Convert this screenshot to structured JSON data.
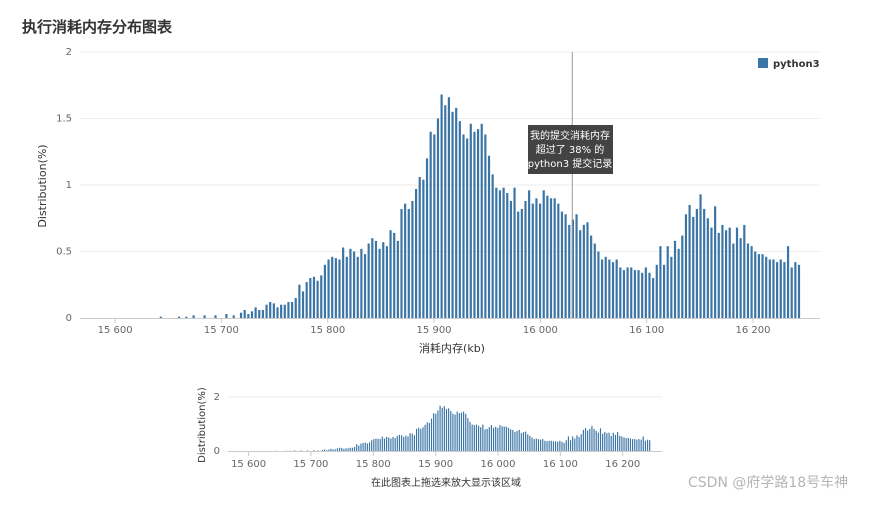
{
  "title": "执行消耗内存分布图表",
  "watermark": "CSDN @府学路18号车神",
  "main_chart": {
    "xlabel": "消耗内存(kb)",
    "ylabel": "Distribution(%)",
    "legend": "python3",
    "tooltip": [
      "我的提交消耗内存",
      "超过了 38% 的",
      "python3 提交记录"
    ]
  },
  "navigator": {
    "ylabel": "Distribution(%)",
    "hint": "在此图表上拖选来放大显示该区域"
  },
  "colors": {
    "bar": "#3b75a6",
    "grid": "#eeeeee",
    "axis": "#cccccc",
    "tooltip_bg": "#333333"
  },
  "chart_data": {
    "type": "bar",
    "series_name": "python3",
    "xlim": [
      15567,
      16263
    ],
    "ylim": [
      0,
      2
    ],
    "x_ticks": [
      15600,
      15700,
      15800,
      15900,
      16000,
      16100,
      16200
    ],
    "x_tick_labels": [
      "15 600",
      "15 700",
      "15 800",
      "15 900",
      "16 000",
      "16 100",
      "16 200"
    ],
    "y_ticks": [
      0,
      0.5,
      1,
      1.5,
      2
    ],
    "y_tick_labels": [
      "0",
      "0.5",
      "1",
      "1.5",
      "2"
    ],
    "nav_y_ticks": [
      0,
      2
    ],
    "nav_y_tick_labels": [
      "0",
      "2"
    ],
    "marker_x": 16030,
    "bin_start": 15643,
    "bin_width": 3.43,
    "values": [
      0.01,
      0,
      0,
      0,
      0,
      0.01,
      0,
      0.01,
      0,
      0.02,
      0,
      0,
      0.02,
      0,
      0,
      0.02,
      0,
      0,
      0.03,
      0,
      0.02,
      0,
      0.04,
      0.06,
      0.03,
      0.05,
      0.08,
      0.06,
      0.06,
      0.1,
      0.12,
      0.11,
      0.08,
      0.1,
      0.1,
      0.12,
      0.12,
      0.15,
      0.25,
      0.2,
      0.27,
      0.3,
      0.31,
      0.28,
      0.32,
      0.4,
      0.44,
      0.46,
      0.45,
      0.44,
      0.53,
      0.46,
      0.52,
      0.5,
      0.46,
      0.52,
      0.48,
      0.56,
      0.6,
      0.58,
      0.52,
      0.57,
      0.54,
      0.66,
      0.64,
      0.58,
      0.82,
      0.86,
      0.82,
      0.88,
      0.97,
      1.06,
      1.04,
      1.2,
      1.4,
      1.38,
      1.5,
      1.68,
      1.6,
      1.66,
      1.55,
      1.58,
      1.48,
      1.38,
      1.35,
      1.46,
      1.4,
      1.42,
      1.46,
      1.38,
      1.22,
      1.08,
      0.98,
      0.96,
      0.98,
      0.94,
      0.88,
      0.98,
      0.8,
      0.82,
      0.88,
      0.96,
      0.86,
      0.9,
      0.86,
      0.96,
      0.92,
      0.9,
      0.9,
      0.86,
      0.8,
      0.78,
      0.7,
      0.74,
      0.78,
      0.66,
      0.7,
      0.72,
      0.62,
      0.56,
      0.5,
      0.44,
      0.46,
      0.44,
      0.42,
      0.44,
      0.38,
      0.36,
      0.38,
      0.38,
      0.36,
      0.36,
      0.34,
      0.38,
      0.34,
      0.3,
      0.4,
      0.54,
      0.4,
      0.54,
      0.46,
      0.58,
      0.52,
      0.62,
      0.78,
      0.85,
      0.76,
      0.82,
      0.93,
      0.82,
      0.75,
      0.68,
      0.84,
      0.64,
      0.7,
      0.66,
      0.68,
      0.56,
      0.68,
      0.6,
      0.7,
      0.56,
      0.54,
      0.5,
      0.48,
      0.48,
      0.46,
      0.44,
      0.44,
      0.42,
      0.44,
      0.42,
      0.54,
      0.38,
      0.42,
      0.4
    ]
  }
}
